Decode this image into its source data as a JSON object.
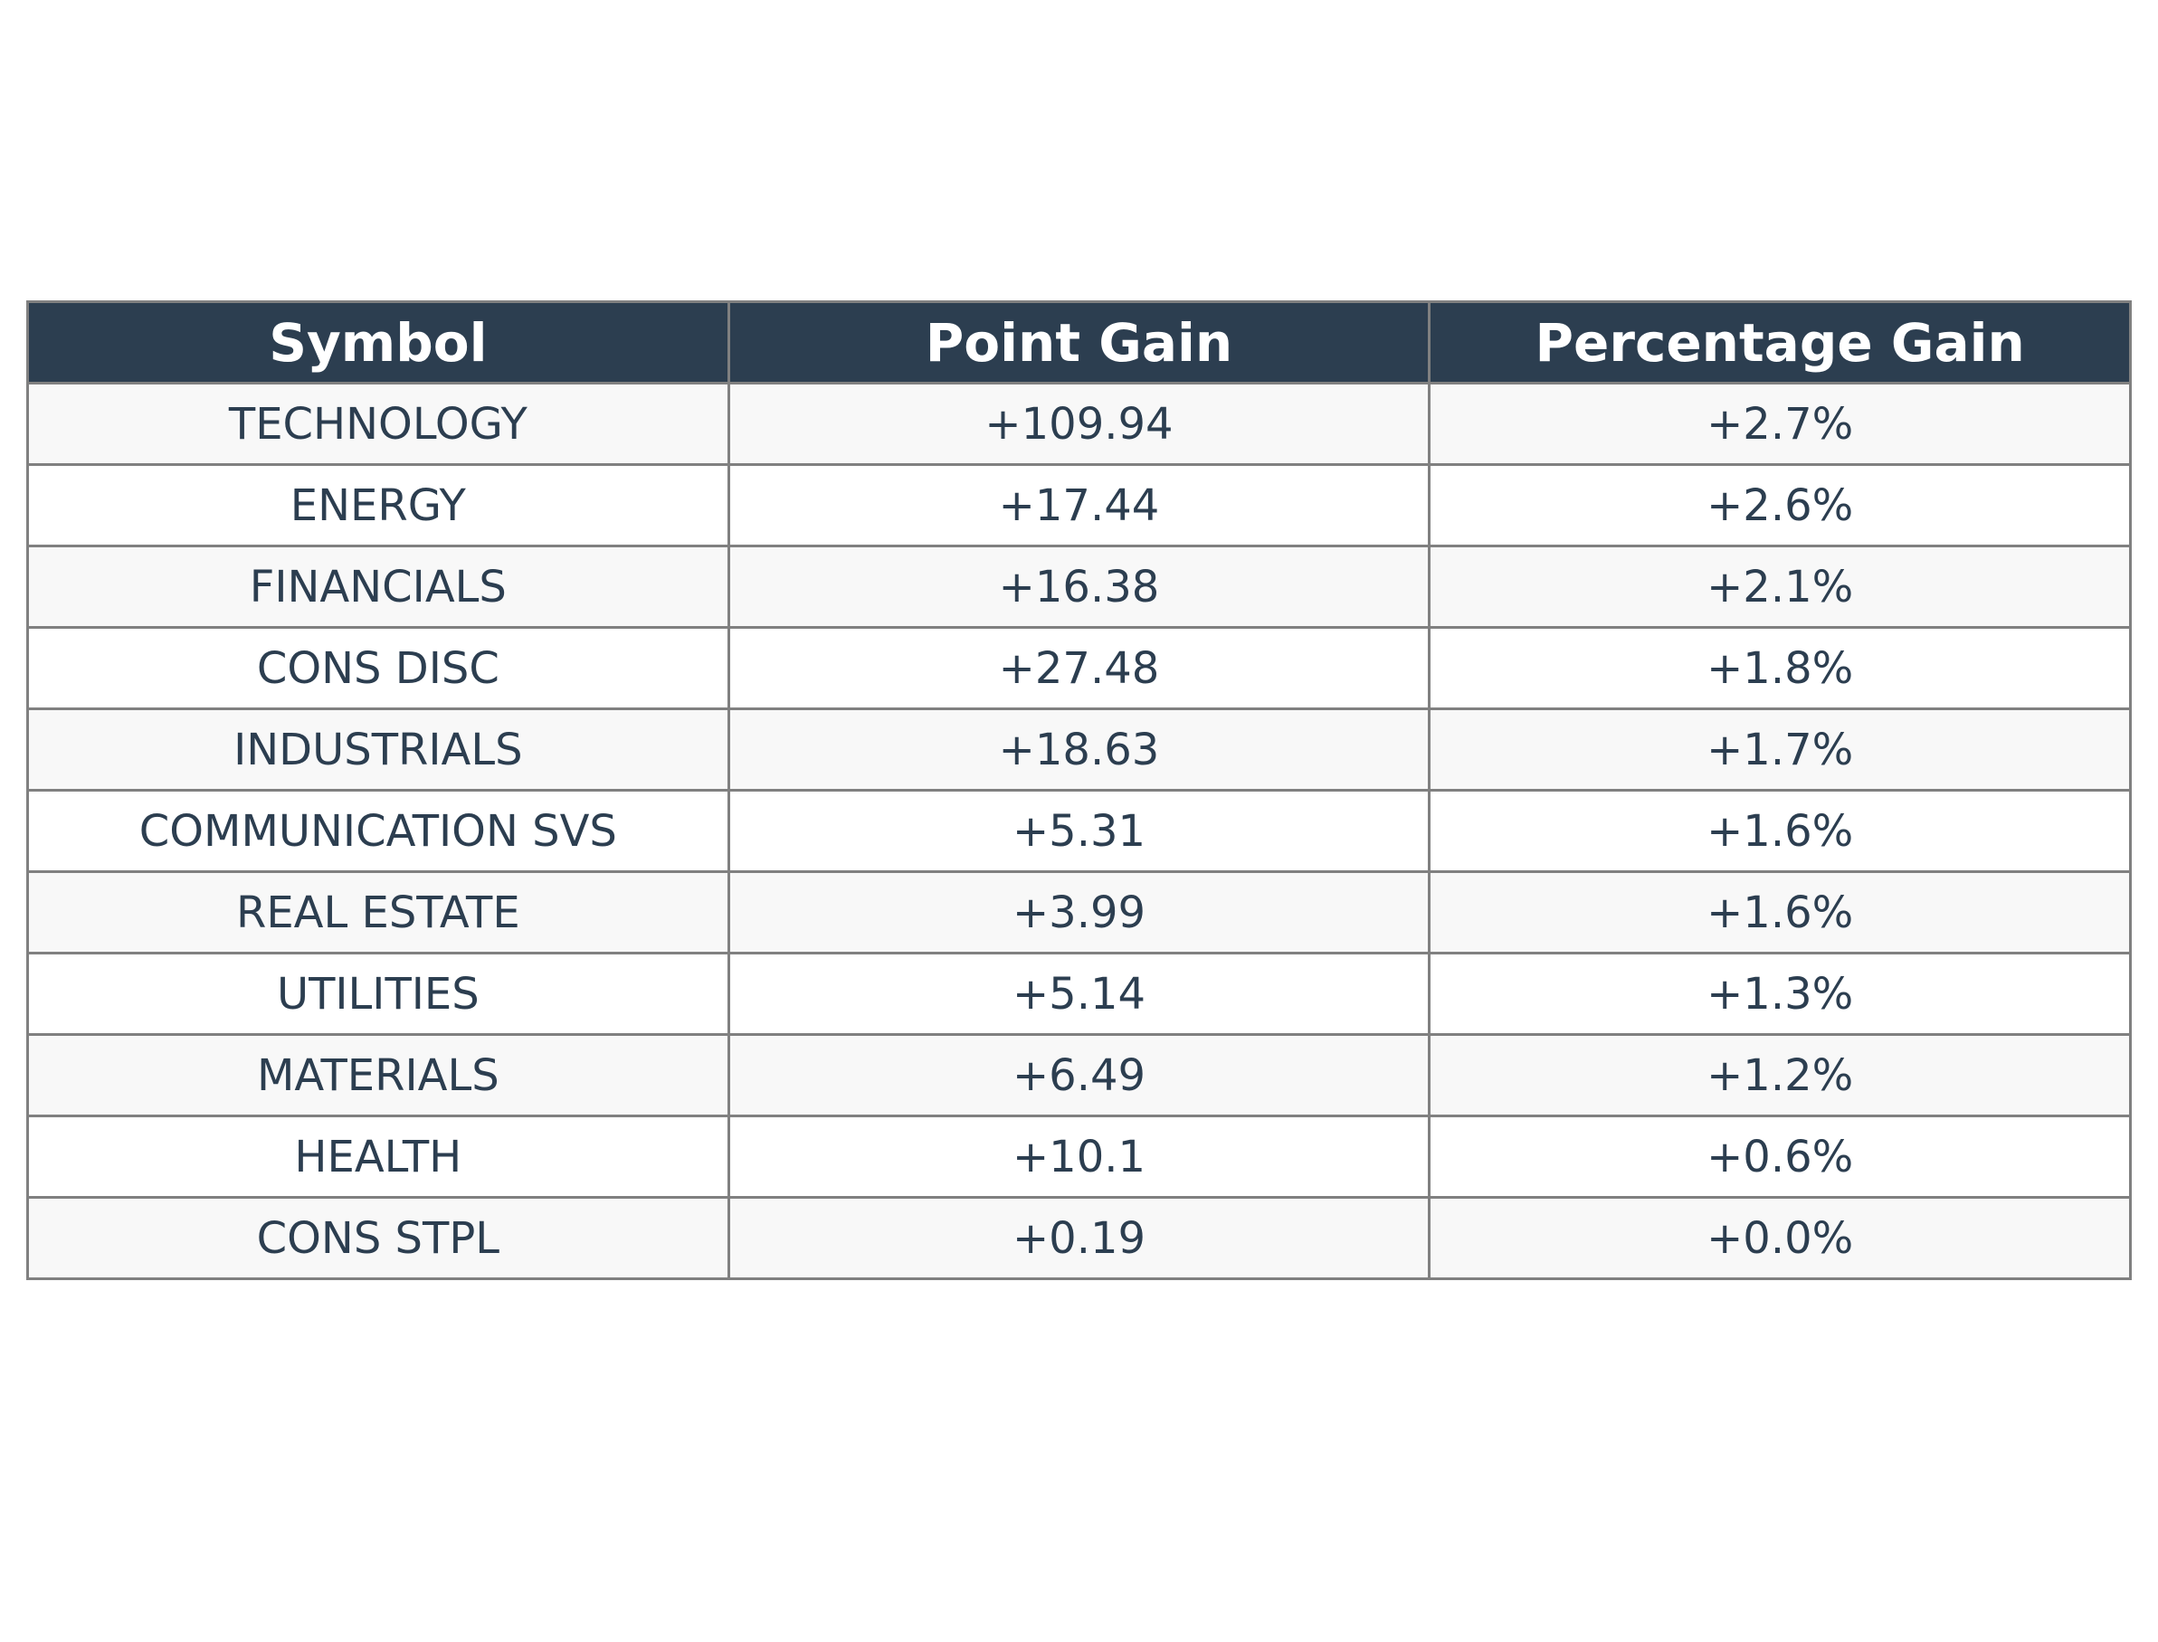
{
  "colors": {
    "header_background": "#2c3e50",
    "header_text": "#ffffff",
    "body_text": "#2c3e50",
    "row_stripe": "#f8f8f8",
    "row_plain": "#ffffff",
    "border": "#808080"
  },
  "chart_data": {
    "type": "table",
    "columns": [
      "Symbol",
      "Point Gain",
      "Percentage Gain"
    ],
    "rows": [
      [
        "TECHNOLOGY",
        "+109.94",
        "+2.7%"
      ],
      [
        "ENERGY",
        "+17.44",
        "+2.6%"
      ],
      [
        "FINANCIALS",
        "+16.38",
        "+2.1%"
      ],
      [
        "CONS DISC",
        "+27.48",
        "+1.8%"
      ],
      [
        "INDUSTRIALS",
        "+18.63",
        "+1.7%"
      ],
      [
        "COMMUNICATION SVS",
        "+5.31",
        "+1.6%"
      ],
      [
        "REAL ESTATE",
        "+3.99",
        "+1.6%"
      ],
      [
        "UTILITIES",
        "+5.14",
        "+1.3%"
      ],
      [
        "MATERIALS",
        "+6.49",
        "+1.2%"
      ],
      [
        "HEALTH",
        "+10.1",
        "+0.6%"
      ],
      [
        "CONS STPL",
        "+0.19",
        "+0.0%"
      ]
    ]
  }
}
